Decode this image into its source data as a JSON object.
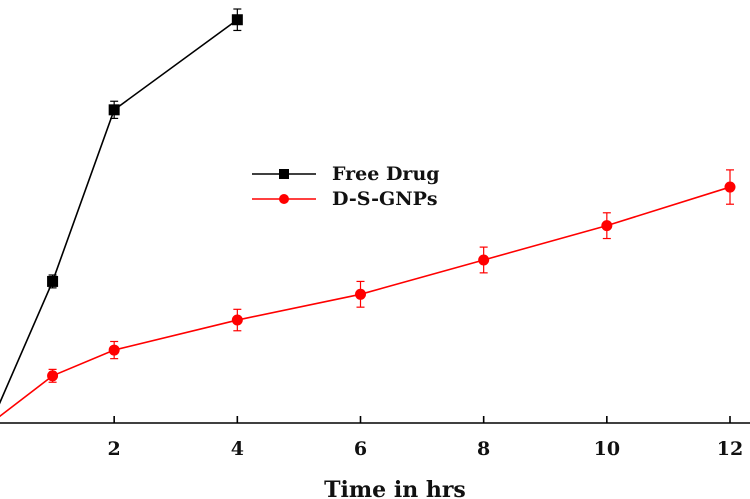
{
  "chart_data": {
    "type": "line",
    "title": "",
    "xlabel": "Time in hrs",
    "ylabel": "",
    "x_ticks": [
      2,
      4,
      6,
      8,
      10,
      12
    ],
    "xlim": [
      0,
      12
    ],
    "ylim": [
      0,
      100
    ],
    "grid": false,
    "legend_position": "top-center",
    "series": [
      {
        "name": "Free Drug",
        "color": "#000000",
        "marker": "square",
        "x": [
          0,
          1,
          2,
          4
        ],
        "y": [
          0,
          33,
          73,
          94
        ],
        "error": [
          0,
          1.5,
          2,
          2.5
        ]
      },
      {
        "name": "D-S-GNPs",
        "color": "#ff0000",
        "marker": "circle",
        "x": [
          0,
          1,
          2,
          4,
          6,
          8,
          10,
          12
        ],
        "y": [
          0,
          11,
          17,
          24,
          30,
          38,
          46,
          55
        ],
        "error": [
          0,
          1.5,
          2,
          2.5,
          3,
          3,
          3,
          4
        ]
      }
    ]
  }
}
